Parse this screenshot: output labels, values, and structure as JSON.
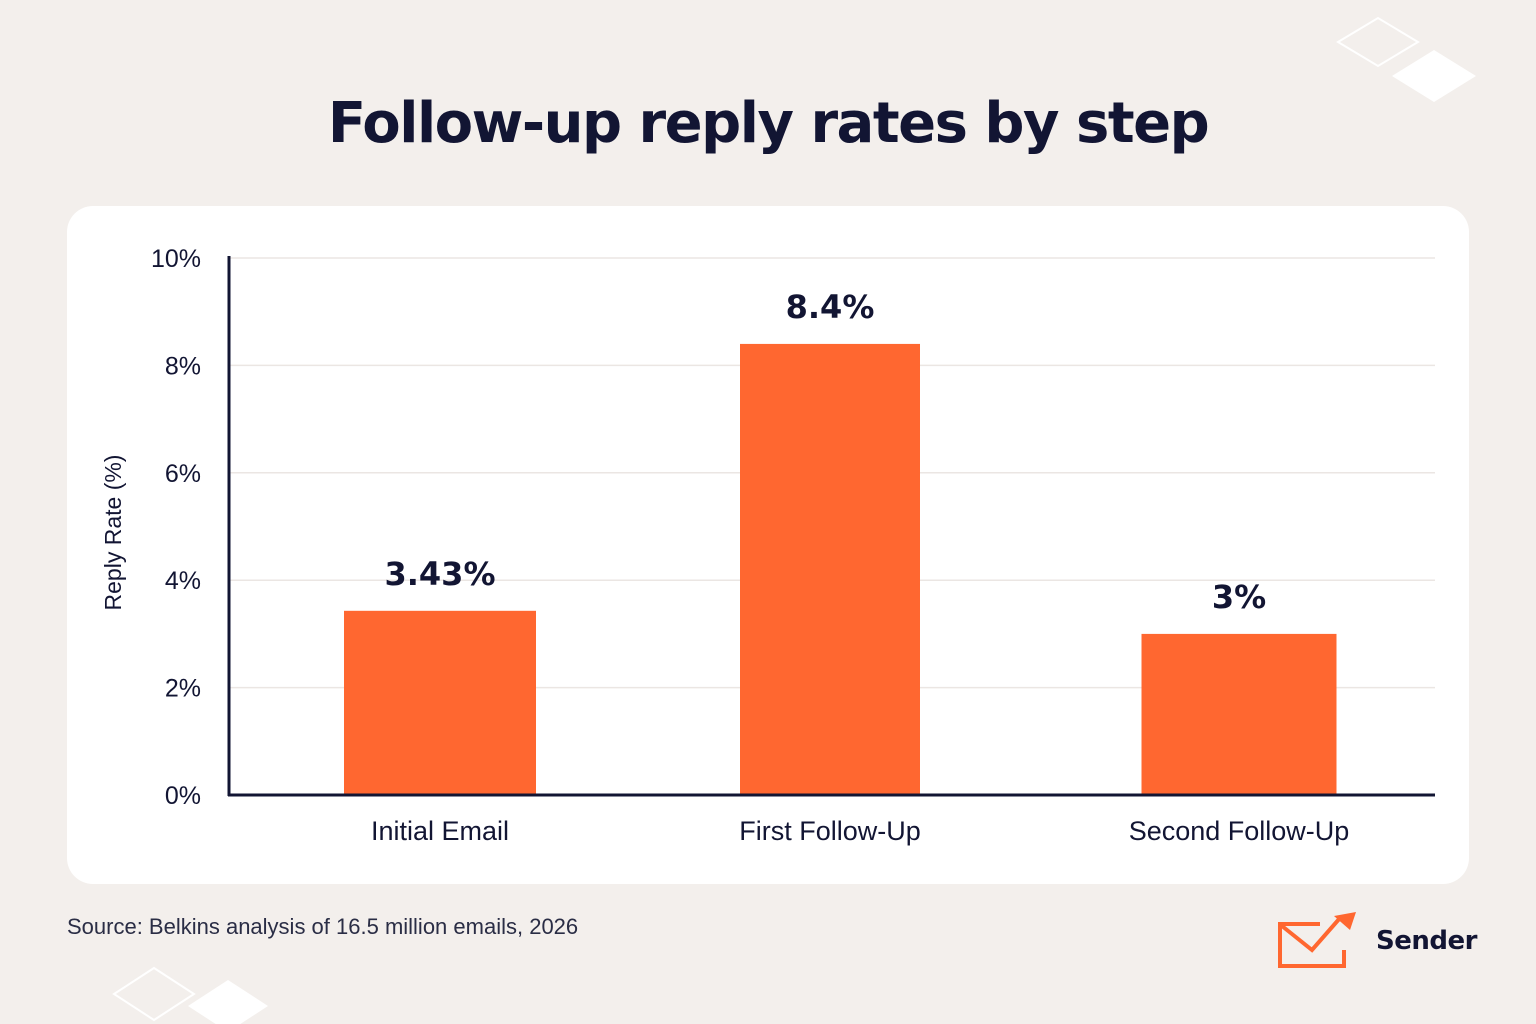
{
  "title": "Follow-up reply rates by step",
  "source": "Source: Belkins analysis of 16.5 million emails, 2026",
  "brand": {
    "name": "Sender",
    "icon": "envelope-arrow-icon",
    "color": "#ff6730"
  },
  "colors": {
    "bar": "#ff6730",
    "text": "#121533",
    "grid": "#ebe6e3",
    "axis": "#121533",
    "background": "#f3efec",
    "card": "#ffffff"
  },
  "chart_data": {
    "type": "bar",
    "title": "Follow-up reply rates by step",
    "ylabel": "Reply Rate (%)",
    "xlabel": "",
    "categories": [
      "Initial Email",
      "First Follow-Up",
      "Second Follow-Up"
    ],
    "values": [
      3.43,
      8.4,
      3
    ],
    "value_labels": [
      "3.43%",
      "8.4%",
      "3%"
    ],
    "ylim": [
      0,
      10
    ],
    "yticks": [
      0,
      2,
      4,
      6,
      8,
      10
    ],
    "ytick_labels": [
      "0%",
      "2%",
      "4%",
      "6%",
      "8%",
      "10%"
    ],
    "grid": true,
    "legend": "none"
  }
}
